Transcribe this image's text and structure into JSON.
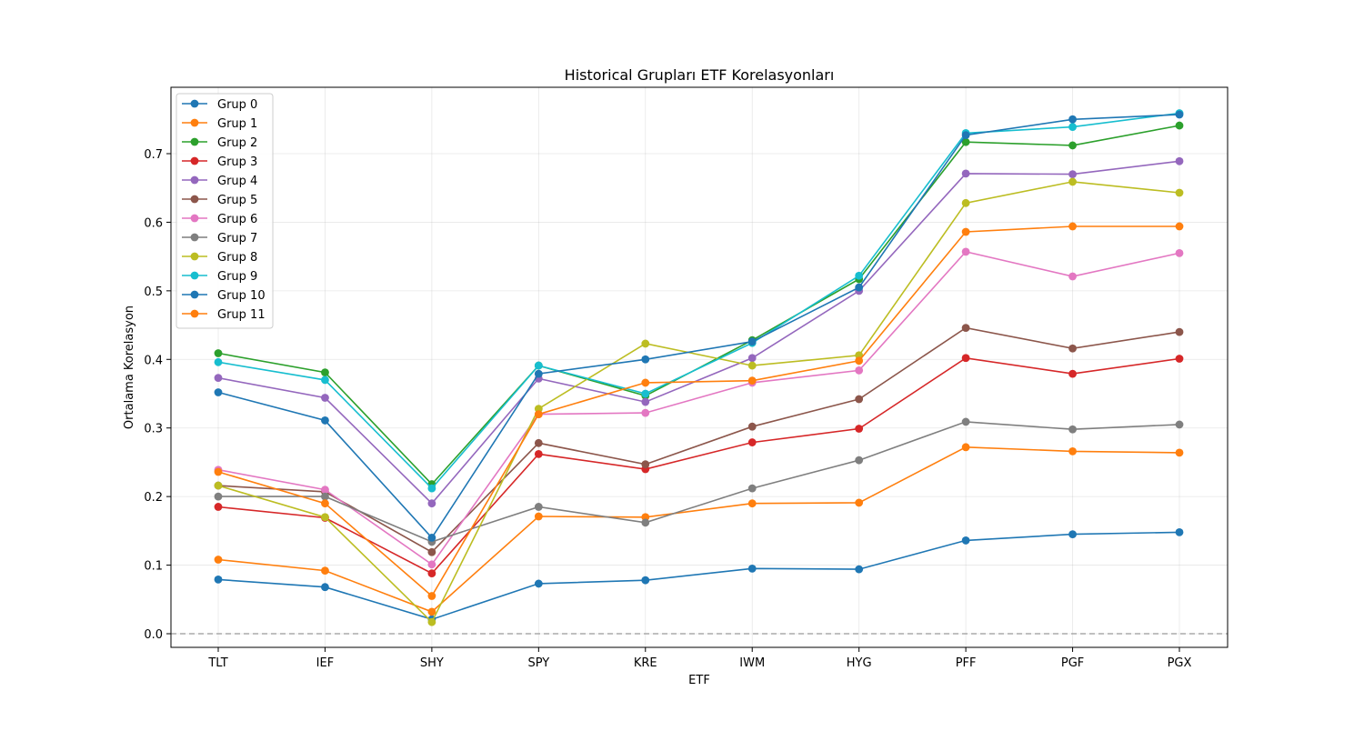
{
  "chart_data": {
    "type": "line",
    "title": "Historical Grupları ETF Korelasyonları",
    "xlabel": "ETF",
    "ylabel": "Ortalama Korelasyon",
    "categories": [
      "TLT",
      "IEF",
      "SHY",
      "SPY",
      "KRE",
      "IWM",
      "HYG",
      "PFF",
      "PGF",
      "PGX"
    ],
    "ylim": [
      -0.02,
      0.795
    ],
    "yticks": [
      "0.0",
      "0.1",
      "0.2",
      "0.3",
      "0.4",
      "0.5",
      "0.6",
      "0.7"
    ],
    "grid": true,
    "legend_position": "upper-left",
    "reference_line": {
      "y": 0.0,
      "style": "dashed",
      "color": "#aaaaaa"
    },
    "series": [
      {
        "name": "Grup 0",
        "color": "#1f77b4",
        "values": [
          0.079,
          0.068,
          0.021,
          0.073,
          0.078,
          0.095,
          0.094,
          0.136,
          0.145,
          0.148
        ]
      },
      {
        "name": "Grup 1",
        "color": "#ff7f0e",
        "values": [
          0.108,
          0.092,
          0.032,
          0.171,
          0.17,
          0.19,
          0.191,
          0.272,
          0.266,
          0.264
        ]
      },
      {
        "name": "Grup 2",
        "color": "#2ca02c",
        "values": [
          0.409,
          0.381,
          0.218,
          0.391,
          0.347,
          0.428,
          0.517,
          0.717,
          0.712,
          0.741
        ]
      },
      {
        "name": "Grup 3",
        "color": "#d62728",
        "values": [
          0.185,
          0.169,
          0.088,
          0.262,
          0.24,
          0.279,
          0.299,
          0.402,
          0.379,
          0.401
        ]
      },
      {
        "name": "Grup 4",
        "color": "#9467bd",
        "values": [
          0.373,
          0.344,
          0.19,
          0.372,
          0.338,
          0.402,
          0.5,
          0.671,
          0.67,
          0.689
        ]
      },
      {
        "name": "Grup 5",
        "color": "#8c564b",
        "values": [
          0.216,
          0.207,
          0.119,
          0.278,
          0.247,
          0.302,
          0.342,
          0.446,
          0.416,
          0.44
        ]
      },
      {
        "name": "Grup 6",
        "color": "#e377c2",
        "values": [
          0.239,
          0.21,
          0.101,
          0.32,
          0.322,
          0.366,
          0.384,
          0.557,
          0.521,
          0.555
        ]
      },
      {
        "name": "Grup 7",
        "color": "#7f7f7f",
        "values": [
          0.2,
          0.2,
          0.134,
          0.185,
          0.162,
          0.212,
          0.253,
          0.309,
          0.298,
          0.305
        ]
      },
      {
        "name": "Grup 8",
        "color": "#bcbd22",
        "values": [
          0.216,
          0.17,
          0.017,
          0.328,
          0.423,
          0.391,
          0.406,
          0.628,
          0.659,
          0.643
        ]
      },
      {
        "name": "Grup 9",
        "color": "#17becf",
        "values": [
          0.396,
          0.37,
          0.212,
          0.391,
          0.35,
          0.424,
          0.522,
          0.73,
          0.739,
          0.759
        ]
      },
      {
        "name": "Grup 10",
        "color": "#1f77b4",
        "values": [
          0.352,
          0.311,
          0.14,
          0.379,
          0.4,
          0.426,
          0.505,
          0.727,
          0.75,
          0.757
        ]
      },
      {
        "name": "Grup 11",
        "color": "#ff7f0e",
        "values": [
          0.236,
          0.19,
          0.055,
          0.32,
          0.366,
          0.369,
          0.398,
          0.586,
          0.594,
          0.594
        ]
      }
    ]
  }
}
